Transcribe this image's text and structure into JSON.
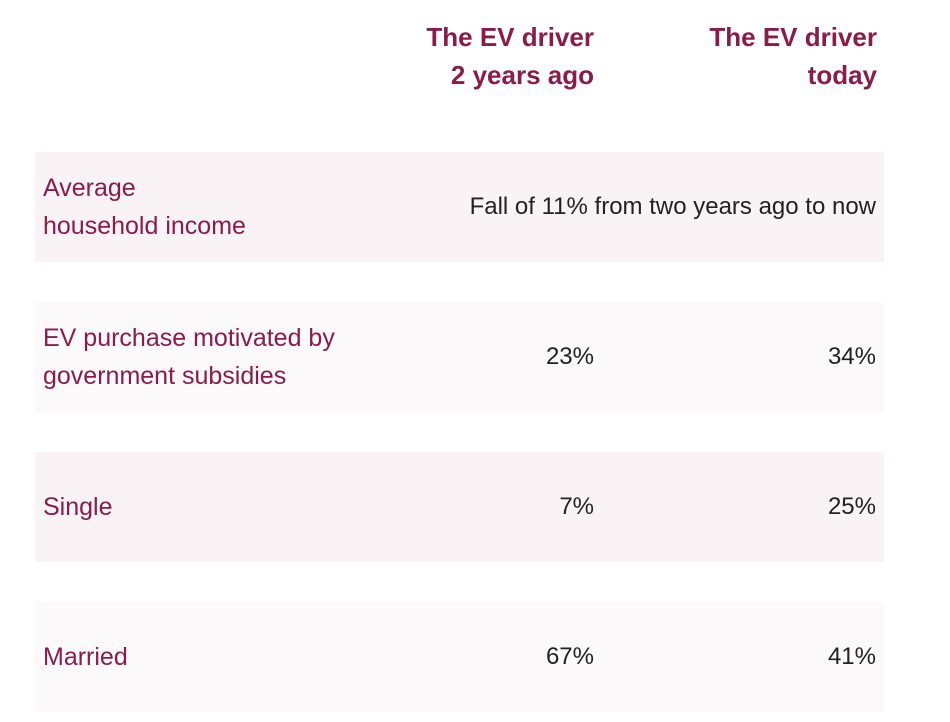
{
  "chart_data": {
    "type": "table",
    "columns": [
      {
        "line1": "The EV driver",
        "line2": "2 years ago"
      },
      {
        "line1": "The EV driver",
        "line2": "today"
      }
    ],
    "rows": [
      {
        "label": "Average\nhousehold income",
        "merged_text": "Fall of 11% from two years ago to now"
      },
      {
        "label": "EV purchase motivated by\ngovernment subsidies",
        "values": [
          "23%",
          "34%"
        ]
      },
      {
        "label": "Single",
        "values": [
          "7%",
          "25%"
        ]
      },
      {
        "label": "Married",
        "values": [
          "67%",
          "41%"
        ]
      }
    ]
  },
  "colors": {
    "accent": "#8a1c4c",
    "row_shade_a": "#f9f3f6",
    "row_shade_b": "#fcf9fa",
    "value_text": "#222222"
  }
}
